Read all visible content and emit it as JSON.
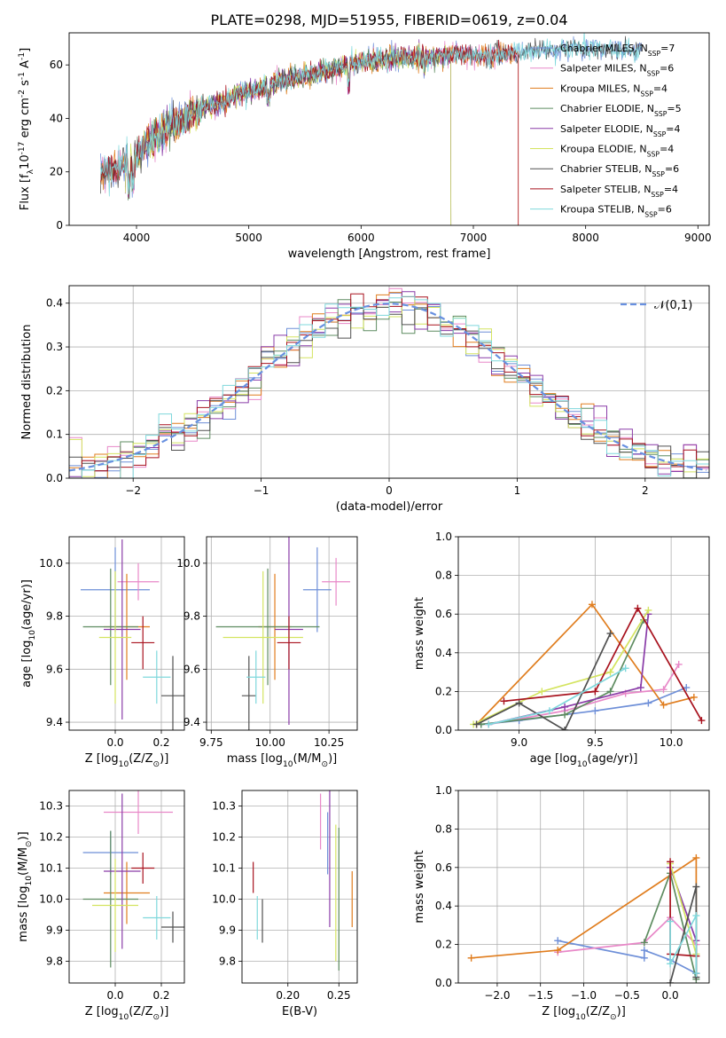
{
  "colors": {
    "chabrier_miles": "#6e8fd8",
    "salpeter_miles": "#e888c8",
    "kroupa_miles": "#e07d1e",
    "chabrier_elodie": "#5e8c60",
    "salpeter_elodie": "#8a3ca8",
    "kroupa_elodie": "#d4e460",
    "chabrier_stelib": "#505050",
    "salpeter_stelib": "#a8121e",
    "kroupa_stelib": "#7fd8dc",
    "normal": "#6890e0"
  },
  "chart_data": [
    {
      "id": "spectrum",
      "type": "line",
      "title": "PLATE=0298, MJD=51955, FIBERID=0619, z=0.04",
      "xlabel": "wavelength [Angstrom, rest frame]",
      "ylabel": "Flux [f$_\\lambda$10$^{-17}$ erg cm$^{-2}$ s$^{-1}$ A$^{-1}$]",
      "xlim": [
        3400,
        9100
      ],
      "ylim": [
        0,
        72
      ],
      "xticks": [
        "4000",
        "5000",
        "6000",
        "7000",
        "8000",
        "9000"
      ],
      "yticks": [
        "0",
        "20",
        "40",
        "60"
      ],
      "grid": false,
      "legend_placement": "right",
      "continuum": [
        [
          3680,
          20
        ],
        [
          3800,
          21
        ],
        [
          3900,
          23
        ],
        [
          4000,
          26
        ],
        [
          4100,
          31
        ],
        [
          4200,
          34
        ],
        [
          4300,
          37
        ],
        [
          4400,
          39
        ],
        [
          4500,
          42
        ],
        [
          4600,
          44
        ],
        [
          4700,
          45
        ],
        [
          4800,
          47
        ],
        [
          4900,
          49
        ],
        [
          5000,
          50
        ],
        [
          5100,
          51
        ],
        [
          5200,
          53
        ],
        [
          5300,
          54
        ],
        [
          5400,
          55
        ],
        [
          5500,
          56
        ],
        [
          5600,
          57
        ],
        [
          5700,
          58
        ],
        [
          5800,
          59
        ],
        [
          5900,
          60
        ],
        [
          6000,
          61
        ],
        [
          6100,
          61.5
        ],
        [
          6200,
          62
        ],
        [
          6300,
          62.5
        ],
        [
          6400,
          63
        ],
        [
          6500,
          63
        ],
        [
          6600,
          63
        ],
        [
          6700,
          63.5
        ],
        [
          6800,
          64
        ],
        [
          6900,
          64
        ],
        [
          7000,
          63.5
        ],
        [
          7100,
          63
        ],
        [
          7200,
          63.5
        ],
        [
          7300,
          64
        ],
        [
          7400,
          64.5
        ],
        [
          7500,
          65
        ],
        [
          7600,
          65
        ],
        [
          7700,
          65.5
        ],
        [
          7800,
          66
        ],
        [
          7900,
          66
        ],
        [
          8000,
          66.5
        ],
        [
          8100,
          66.5
        ],
        [
          8200,
          66
        ],
        [
          8300,
          66
        ],
        [
          8400,
          65.5
        ],
        [
          8500,
          65
        ]
      ],
      "series": [
        {
          "name": "Chabrier MILES, N$_{SSP}$=7",
          "key": "chabrier_miles",
          "start": 3680,
          "end": 8500
        },
        {
          "name": "Salpeter MILES, N$_{SSP}$=6",
          "key": "salpeter_miles",
          "start": 3680,
          "end": 7400
        },
        {
          "name": "Kroupa MILES, N$_{SSP}$=4",
          "key": "kroupa_miles",
          "start": 3680,
          "end": 7400
        },
        {
          "name": "Chabrier ELODIE, N$_{SSP}$=5",
          "key": "chabrier_elodie",
          "start": 3900,
          "end": 6800
        },
        {
          "name": "Salpeter ELODIE, N$_{SSP}$=4",
          "key": "salpeter_elodie",
          "start": 3900,
          "end": 6800
        },
        {
          "name": "Kroupa ELODIE, N$_{SSP}$=4",
          "key": "kroupa_elodie",
          "start": 3900,
          "end": 6800
        },
        {
          "name": "Chabrier STELIB, N$_{SSP}$=6",
          "key": "chabrier_stelib",
          "start": 3680,
          "end": 8500
        },
        {
          "name": "Salpeter STELIB, N$_{SSP}$=4",
          "key": "salpeter_stelib",
          "start": 3680,
          "end": 7400
        },
        {
          "name": "Kroupa STELIB, N$_{SSP}$=6",
          "key": "kroupa_stelib",
          "start": 3680,
          "end": 8500
        }
      ]
    },
    {
      "id": "residuals",
      "type": "line",
      "xlabel": "(data-model)/error",
      "ylabel": "Normed distribution",
      "xlim": [
        -2.5,
        2.5
      ],
      "ylim": [
        0,
        0.44
      ],
      "xticks": [
        "−2",
        "−1",
        "0",
        "1",
        "2"
      ],
      "yticks": [
        "0.0",
        "0.1",
        "0.2",
        "0.3",
        "0.4"
      ],
      "grid": true,
      "legend": "$\\mathcal{N}(0,1)$",
      "legend_placement": "top-right",
      "bin_width": 0.1,
      "note": "step histograms of normalized residuals for each of the nine model fits, overlaid with the unit normal curve"
    },
    {
      "id": "age_vs_Z",
      "type": "scatter",
      "xlabel": "Z [log$_{10}$(Z/Z$_\\odot$)]",
      "ylabel": "age  [log$_{10}$(age/yr)]",
      "xlim": [
        -0.2,
        0.3
      ],
      "ylim": [
        9.37,
        10.1
      ],
      "xticks": [
        "0.0",
        "0.2"
      ],
      "yticks": [
        "9.4",
        "9.6",
        "9.8",
        "10.0"
      ],
      "grid": true,
      "points": [
        {
          "key": "chabrier_miles",
          "x": 0.0,
          "y": 9.9,
          "xerr": 0.15,
          "yerr": 0.16
        },
        {
          "key": "salpeter_miles",
          "x": 0.1,
          "y": 9.93,
          "xerr": 0.09,
          "yerr": 0.07
        },
        {
          "key": "kroupa_miles",
          "x": 0.05,
          "y": 9.76,
          "xerr": 0.1,
          "yerr": 0.2
        },
        {
          "key": "chabrier_elodie",
          "x": -0.02,
          "y": 9.76,
          "xerr": 0.12,
          "yerr": 0.22
        },
        {
          "key": "salpeter_elodie",
          "x": 0.03,
          "y": 9.75,
          "xerr": 0.08,
          "yerr": 0.34
        },
        {
          "key": "kroupa_elodie",
          "x": 0.0,
          "y": 9.72,
          "xerr": 0.07,
          "yerr": 0.25
        },
        {
          "key": "chabrier_stelib",
          "x": 0.25,
          "y": 9.5,
          "xerr": 0.05,
          "yerr": 0.15
        },
        {
          "key": "salpeter_stelib",
          "x": 0.12,
          "y": 9.7,
          "xerr": 0.05,
          "yerr": 0.1
        },
        {
          "key": "kroupa_stelib",
          "x": 0.18,
          "y": 9.57,
          "xerr": 0.06,
          "yerr": 0.1
        }
      ]
    },
    {
      "id": "age_vs_mass",
      "type": "scatter",
      "xlabel": "mass [log$_{10}$(M/M$_\\odot$)]",
      "xlim": [
        9.73,
        10.37
      ],
      "ylim": [
        9.37,
        10.1
      ],
      "xticks": [
        "9.75",
        "10.00",
        "10.25"
      ],
      "yticks": [
        "9.4",
        "9.6",
        "9.8",
        "10.0"
      ],
      "grid": true,
      "points": [
        {
          "key": "chabrier_miles",
          "x": 10.2,
          "y": 9.9,
          "xerr": 0.06,
          "yerr": 0.16
        },
        {
          "key": "salpeter_miles",
          "x": 10.28,
          "y": 9.93,
          "xerr": 0.06,
          "yerr": 0.09
        },
        {
          "key": "kroupa_miles",
          "x": 10.02,
          "y": 9.76,
          "xerr": 0.07,
          "yerr": 0.2
        },
        {
          "key": "chabrier_elodie",
          "x": 9.99,
          "y": 9.76,
          "xerr": 0.22,
          "yerr": 0.22
        },
        {
          "key": "salpeter_elodie",
          "x": 10.08,
          "y": 9.75,
          "xerr": 0.06,
          "yerr": 0.36
        },
        {
          "key": "kroupa_elodie",
          "x": 9.97,
          "y": 9.72,
          "xerr": 0.17,
          "yerr": 0.25
        },
        {
          "key": "chabrier_stelib",
          "x": 9.91,
          "y": 9.5,
          "xerr": 0.03,
          "yerr": 0.15
        },
        {
          "key": "salpeter_stelib",
          "x": 10.08,
          "y": 9.7,
          "xerr": 0.05,
          "yerr": 0.1
        },
        {
          "key": "kroupa_stelib",
          "x": 9.94,
          "y": 9.57,
          "xerr": 0.04,
          "yerr": 0.1
        }
      ]
    },
    {
      "id": "massweight_vs_age",
      "type": "line",
      "xlabel": "age  [log$_{10}$(age/yr)]",
      "ylabel": "mass weight",
      "xlim": [
        8.6,
        10.25
      ],
      "ylim": [
        0,
        1
      ],
      "xticks": [
        "9.0",
        "9.5",
        "10.0"
      ],
      "yticks": [
        "0.0",
        "0.2",
        "0.4",
        "0.6",
        "0.8",
        "1.0"
      ],
      "grid": true,
      "series": [
        {
          "key": "chabrier_miles",
          "points": [
            [
              8.75,
              0.03
            ],
            [
              9.0,
              0.05
            ],
            [
              9.5,
              0.1
            ],
            [
              9.85,
              0.14
            ],
            [
              10.1,
              0.22
            ]
          ]
        },
        {
          "key": "salpeter_miles",
          "points": [
            [
              8.8,
              0.03
            ],
            [
              9.3,
              0.1
            ],
            [
              9.7,
              0.19
            ],
            [
              9.95,
              0.21
            ],
            [
              10.05,
              0.34
            ]
          ]
        },
        {
          "key": "kroupa_miles",
          "points": [
            [
              8.72,
              0.03
            ],
            [
              9.48,
              0.65
            ],
            [
              9.95,
              0.13
            ],
            [
              10.15,
              0.17
            ]
          ]
        },
        {
          "key": "chabrier_elodie",
          "points": [
            [
              8.75,
              0.03
            ],
            [
              9.3,
              0.08
            ],
            [
              9.6,
              0.2
            ],
            [
              9.82,
              0.57
            ]
          ]
        },
        {
          "key": "salpeter_elodie",
          "points": [
            [
              8.8,
              0.03
            ],
            [
              9.3,
              0.12
            ],
            [
              9.8,
              0.22
            ],
            [
              9.85,
              0.6
            ]
          ]
        },
        {
          "key": "kroupa_elodie",
          "points": [
            [
              8.7,
              0.03
            ],
            [
              9.15,
              0.2
            ],
            [
              9.6,
              0.3
            ],
            [
              9.85,
              0.62
            ]
          ]
        },
        {
          "key": "chabrier_stelib",
          "points": [
            [
              8.72,
              0.03
            ],
            [
              9.0,
              0.14
            ],
            [
              9.3,
              0.0
            ],
            [
              9.6,
              0.5
            ]
          ]
        },
        {
          "key": "salpeter_stelib",
          "points": [
            [
              8.9,
              0.15
            ],
            [
              9.5,
              0.2
            ],
            [
              9.78,
              0.63
            ],
            [
              10.2,
              0.05
            ]
          ]
        },
        {
          "key": "kroupa_stelib",
          "points": [
            [
              8.8,
              0.03
            ],
            [
              9.2,
              0.1
            ],
            [
              9.7,
              0.32
            ]
          ]
        }
      ]
    },
    {
      "id": "mass_vs_Z",
      "type": "scatter",
      "xlabel": "Z [log$_{10}$(Z/Z$_\\odot$)]",
      "ylabel": "mass [log$_{10}$(M/M$_\\odot$)]",
      "xlim": [
        -0.2,
        0.3
      ],
      "ylim": [
        9.73,
        10.35
      ],
      "xticks": [
        "0.0",
        "0.2"
      ],
      "yticks": [
        "9.8",
        "9.9",
        "10.0",
        "10.1",
        "10.2",
        "10.3"
      ],
      "grid": true,
      "points": [
        {
          "key": "chabrier_miles",
          "x": -0.02,
          "y": 10.15,
          "xerr": 0.12,
          "yerr": 0.07
        },
        {
          "key": "salpeter_miles",
          "x": 0.1,
          "y": 10.28,
          "xerr": 0.15,
          "yerr": 0.07
        },
        {
          "key": "kroupa_miles",
          "x": 0.05,
          "y": 10.02,
          "xerr": 0.1,
          "yerr": 0.1
        },
        {
          "key": "chabrier_elodie",
          "x": -0.02,
          "y": 10.0,
          "xerr": 0.12,
          "yerr": 0.22
        },
        {
          "key": "salpeter_elodie",
          "x": 0.03,
          "y": 10.09,
          "xerr": 0.08,
          "yerr": 0.25
        },
        {
          "key": "kroupa_elodie",
          "x": 0.0,
          "y": 9.98,
          "xerr": 0.1,
          "yerr": 0.15
        },
        {
          "key": "chabrier_stelib",
          "x": 0.25,
          "y": 9.91,
          "xerr": 0.05,
          "yerr": 0.05
        },
        {
          "key": "salpeter_stelib",
          "x": 0.12,
          "y": 10.1,
          "xerr": 0.05,
          "yerr": 0.05
        },
        {
          "key": "kroupa_stelib",
          "x": 0.18,
          "y": 9.94,
          "xerr": 0.06,
          "yerr": 0.07
        }
      ]
    },
    {
      "id": "mass_vs_EBV",
      "type": "scatter",
      "xlabel": "E(B-V)",
      "xlim": [
        0.155,
        0.268
      ],
      "ylim": [
        9.73,
        10.35
      ],
      "xticks": [
        "0.20",
        "0.25"
      ],
      "yticks": [
        "9.8",
        "9.9",
        "10.0",
        "10.1",
        "10.2",
        "10.3"
      ],
      "grid": true,
      "points": [
        {
          "key": "chabrier_miles",
          "x": 0.239,
          "y": 10.18,
          "xerr": 0,
          "yerr": 0.1
        },
        {
          "key": "salpeter_miles",
          "x": 0.232,
          "y": 10.25,
          "xerr": 0,
          "yerr": 0.09
        },
        {
          "key": "kroupa_miles",
          "x": 0.263,
          "y": 10.0,
          "xerr": 0,
          "yerr": 0.09
        },
        {
          "key": "chabrier_elodie",
          "x": 0.25,
          "y": 10.0,
          "xerr": 0,
          "yerr": 0.23
        },
        {
          "key": "salpeter_elodie",
          "x": 0.241,
          "y": 10.13,
          "xerr": 0,
          "yerr": 0.22
        },
        {
          "key": "kroupa_elodie",
          "x": 0.247,
          "y": 10.02,
          "xerr": 0,
          "yerr": 0.22
        },
        {
          "key": "chabrier_stelib",
          "x": 0.175,
          "y": 9.93,
          "xerr": 0,
          "yerr": 0.07
        },
        {
          "key": "salpeter_stelib",
          "x": 0.166,
          "y": 10.07,
          "xerr": 0,
          "yerr": 0.05
        },
        {
          "key": "kroupa_stelib",
          "x": 0.17,
          "y": 9.94,
          "xerr": 0,
          "yerr": 0.07
        }
      ]
    },
    {
      "id": "massweight_vs_Z",
      "type": "line",
      "xlabel": "Z [log$_{10}$(Z/Z$_\\odot$)]",
      "ylabel": "mass weight",
      "xlim": [
        -2.45,
        0.45
      ],
      "ylim": [
        0,
        1
      ],
      "xticks": [
        "−2.0",
        "−1.5",
        "−1.0",
        "−0.5",
        "0.0"
      ],
      "yticks": [
        "0.0",
        "0.2",
        "0.4",
        "0.6",
        "0.8",
        "1.0"
      ],
      "grid": true,
      "series": [
        {
          "key": "chabrier_miles",
          "points": [
            [
              -1.3,
              0.22
            ],
            [
              -0.3,
              0.13
            ],
            [
              -0.3,
              0.17
            ],
            [
              0.0,
              0.12
            ],
            [
              0.3,
              0.05
            ]
          ]
        },
        {
          "key": "salpeter_miles",
          "points": [
            [
              -1.3,
              0.16
            ],
            [
              -0.3,
              0.21
            ],
            [
              0.0,
              0.34
            ],
            [
              0.3,
              0.2
            ]
          ]
        },
        {
          "key": "kroupa_miles",
          "points": [
            [
              -2.3,
              0.13
            ],
            [
              -1.3,
              0.17
            ],
            [
              0.3,
              0.65
            ],
            [
              0.3,
              0.05
            ]
          ]
        },
        {
          "key": "chabrier_elodie",
          "points": [
            [
              -0.3,
              0.21
            ],
            [
              0.0,
              0.57
            ],
            [
              0.3,
              0.02
            ]
          ]
        },
        {
          "key": "salpeter_elodie",
          "points": [
            [
              0.0,
              0.6
            ],
            [
              0.3,
              0.22
            ],
            [
              0.3,
              0.05
            ]
          ]
        },
        {
          "key": "kroupa_elodie",
          "points": [
            [
              0.0,
              0.62
            ],
            [
              0.3,
              0.15
            ]
          ]
        },
        {
          "key": "chabrier_stelib",
          "points": [
            [
              0.0,
              0.0
            ],
            [
              0.3,
              0.5
            ],
            [
              0.3,
              0.03
            ]
          ]
        },
        {
          "key": "salpeter_stelib",
          "points": [
            [
              0.0,
              0.63
            ],
            [
              0.0,
              0.15
            ],
            [
              0.3,
              0.14
            ]
          ]
        },
        {
          "key": "kroupa_stelib",
          "points": [
            [
              0.0,
              0.32
            ],
            [
              0.0,
              0.1
            ],
            [
              0.3,
              0.35
            ],
            [
              0.3,
              0.05
            ]
          ]
        }
      ]
    }
  ]
}
